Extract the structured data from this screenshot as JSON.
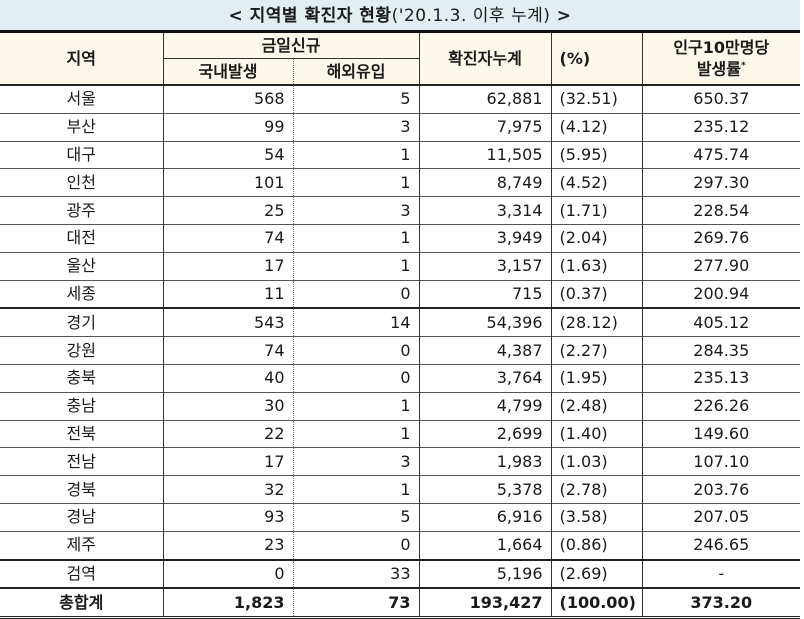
{
  "title": {
    "bold_part": "< 지역별 확진자 현황",
    "thin_part": "('20.1.3. 이후 누계)",
    "suffix": " >"
  },
  "headers": {
    "region": "지역",
    "new_today": "금일신규",
    "domestic": "국내발생",
    "overseas": "해외유입",
    "cumulative": "확진자누계",
    "percent": "(%)",
    "rate_line1": "인구10만명당",
    "rate_line2": "발생률",
    "rate_footnote": "*"
  },
  "rows": [
    {
      "region": "서울",
      "domestic": "568",
      "overseas": "5",
      "cumulative": "62,881",
      "percent": "(32.51)",
      "rate": "650.37"
    },
    {
      "region": "부산",
      "domestic": "99",
      "overseas": "3",
      "cumulative": "7,975",
      "percent": "(4.12)",
      "rate": "235.12"
    },
    {
      "region": "대구",
      "domestic": "54",
      "overseas": "1",
      "cumulative": "11,505",
      "percent": "(5.95)",
      "rate": "475.74"
    },
    {
      "region": "인천",
      "domestic": "101",
      "overseas": "1",
      "cumulative": "8,749",
      "percent": "(4.52)",
      "rate": "297.30"
    },
    {
      "region": "광주",
      "domestic": "25",
      "overseas": "3",
      "cumulative": "3,314",
      "percent": "(1.71)",
      "rate": "228.54"
    },
    {
      "region": "대전",
      "domestic": "74",
      "overseas": "1",
      "cumulative": "3,949",
      "percent": "(2.04)",
      "rate": "269.76"
    },
    {
      "region": "울산",
      "domestic": "17",
      "overseas": "1",
      "cumulative": "3,157",
      "percent": "(1.63)",
      "rate": "277.90"
    },
    {
      "region": "세종",
      "domestic": "11",
      "overseas": "0",
      "cumulative": "715",
      "percent": "(0.37)",
      "rate": "200.94"
    },
    {
      "region": "경기",
      "domestic": "543",
      "overseas": "14",
      "cumulative": "54,396",
      "percent": "(28.12)",
      "rate": "405.12"
    },
    {
      "region": "강원",
      "domestic": "74",
      "overseas": "0",
      "cumulative": "4,387",
      "percent": "(2.27)",
      "rate": "284.35"
    },
    {
      "region": "충북",
      "domestic": "40",
      "overseas": "0",
      "cumulative": "3,764",
      "percent": "(1.95)",
      "rate": "235.13"
    },
    {
      "region": "충남",
      "domestic": "30",
      "overseas": "1",
      "cumulative": "4,799",
      "percent": "(2.48)",
      "rate": "226.26"
    },
    {
      "region": "전북",
      "domestic": "22",
      "overseas": "1",
      "cumulative": "2,699",
      "percent": "(1.40)",
      "rate": "149.60"
    },
    {
      "region": "전남",
      "domestic": "17",
      "overseas": "3",
      "cumulative": "1,983",
      "percent": "(1.03)",
      "rate": "107.10"
    },
    {
      "region": "경북",
      "domestic": "32",
      "overseas": "1",
      "cumulative": "5,378",
      "percent": "(2.78)",
      "rate": "203.76"
    },
    {
      "region": "경남",
      "domestic": "93",
      "overseas": "5",
      "cumulative": "6,916",
      "percent": "(3.58)",
      "rate": "207.05"
    },
    {
      "region": "제주",
      "domestic": "23",
      "overseas": "0",
      "cumulative": "1,664",
      "percent": "(0.86)",
      "rate": "246.65"
    },
    {
      "region": "검역",
      "domestic": "0",
      "overseas": "33",
      "cumulative": "5,196",
      "percent": "(2.69)",
      "rate": "-"
    }
  ],
  "total": {
    "region": "총합계",
    "domestic": "1,823",
    "overseas": "73",
    "cumulative": "193,427",
    "percent": "(100.00)",
    "rate": "373.20"
  },
  "colors": {
    "title_bg": "#e3eef3",
    "header_bg": "#fdf8ea"
  }
}
